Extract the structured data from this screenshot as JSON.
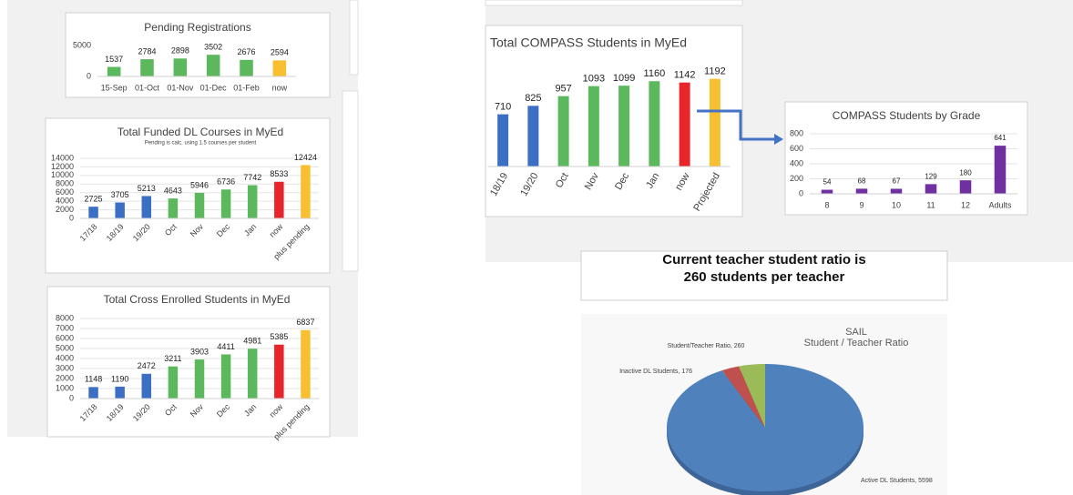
{
  "chart_data": [
    {
      "type": "bar",
      "title": "Pending Registrations",
      "categories": [
        "15-Sep",
        "01-Oct",
        "01-Nov",
        "01-Dec",
        "01-Feb",
        "now"
      ],
      "values": [
        1537,
        2784,
        2898,
        3502,
        2676,
        2594
      ],
      "colors": [
        "#5cb85c",
        "#5cb85c",
        "#5cb85c",
        "#5cb85c",
        "#5cb85c",
        "#f8c030"
      ],
      "ylim": [
        0,
        5000
      ],
      "yticks": [
        0,
        5000
      ],
      "grid": false
    },
    {
      "type": "bar",
      "title": "Total Funded DL Courses in MyEd",
      "subtitle": "Pending is calc. using 1.5 courses per student",
      "categories": [
        "17/18",
        "18/19",
        "19/20",
        "Oct",
        "Nov",
        "Dec",
        "Jan",
        "now",
        "plus pending"
      ],
      "values": [
        2725,
        3705,
        5213,
        4643,
        5946,
        6736,
        7742,
        8533,
        12424
      ],
      "colors": [
        "#3a6fc4",
        "#3a6fc4",
        "#3a6fc4",
        "#5cb85c",
        "#5cb85c",
        "#5cb85c",
        "#5cb85c",
        "#e8252a",
        "#f8c030"
      ],
      "ylim": [
        0,
        14000
      ],
      "yticks": [
        0,
        2000,
        4000,
        6000,
        8000,
        10000,
        12000,
        14000
      ],
      "grid": true
    },
    {
      "type": "bar",
      "title": "Total Cross Enrolled Students in MyEd",
      "categories": [
        "17/18",
        "18/19",
        "19/20",
        "Oct",
        "Nov",
        "Dec",
        "Jan",
        "now",
        "plus pending"
      ],
      "values": [
        1148,
        1190,
        2472,
        3211,
        3903,
        4411,
        4981,
        5385,
        6837
      ],
      "colors": [
        "#3a6fc4",
        "#3a6fc4",
        "#3a6fc4",
        "#5cb85c",
        "#5cb85c",
        "#5cb85c",
        "#5cb85c",
        "#e8252a",
        "#f8c030"
      ],
      "ylim": [
        0,
        8000
      ],
      "yticks": [
        0,
        1000,
        2000,
        3000,
        4000,
        5000,
        6000,
        7000,
        8000
      ],
      "grid": true
    },
    {
      "type": "bar",
      "title": "Total COMPASS Students in MyEd",
      "categories": [
        "18/19",
        "19/20",
        "Oct",
        "Nov",
        "Dec",
        "Jan",
        "now",
        "Projected"
      ],
      "values": [
        710,
        825,
        957,
        1093,
        1099,
        1160,
        1142,
        1192
      ],
      "colors": [
        "#3a6fc4",
        "#3a6fc4",
        "#5cb85c",
        "#5cb85c",
        "#5cb85c",
        "#5cb85c",
        "#e8252a",
        "#f8c030"
      ],
      "ylim": [
        0,
        1200
      ],
      "grid": false
    },
    {
      "type": "bar",
      "title": "COMPASS Students by Grade",
      "categories": [
        "8",
        "9",
        "10",
        "11",
        "12",
        "Adults"
      ],
      "values": [
        54,
        68,
        67,
        129,
        180,
        641
      ],
      "colors": [
        "#7030a0",
        "#7030a0",
        "#7030a0",
        "#7030a0",
        "#7030a0",
        "#7030a0"
      ],
      "ylim": [
        0,
        800
      ],
      "yticks": [
        0,
        200,
        400,
        600,
        800
      ],
      "grid": true
    },
    {
      "type": "pie",
      "title": [
        "SAIL",
        "Student / Teacher Ratio"
      ],
      "values": [
        5598,
        176,
        260
      ],
      "value_labels": [
        "Active DL Students, 5598",
        "Inactive DL Students, 176",
        "Student/Teacher Ratio, 260"
      ],
      "colors": [
        "#4f81bd",
        "#c0504d",
        "#9bbb59"
      ]
    }
  ],
  "banner": [
    "Current teacher student ratio is",
    "260 students per teacher"
  ]
}
